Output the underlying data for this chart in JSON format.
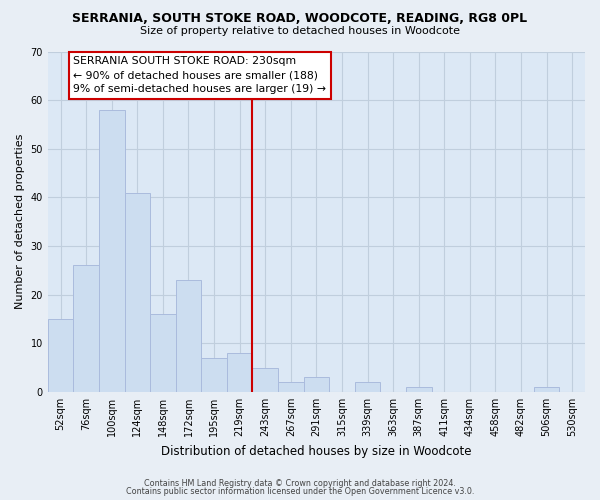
{
  "title_line1": "SERRANIA, SOUTH STOKE ROAD, WOODCOTE, READING, RG8 0PL",
  "title_line2": "Size of property relative to detached houses in Woodcote",
  "xlabel": "Distribution of detached houses by size in Woodcote",
  "ylabel": "Number of detached properties",
  "bar_labels": [
    "52sqm",
    "76sqm",
    "100sqm",
    "124sqm",
    "148sqm",
    "172sqm",
    "195sqm",
    "219sqm",
    "243sqm",
    "267sqm",
    "291sqm",
    "315sqm",
    "339sqm",
    "363sqm",
    "387sqm",
    "411sqm",
    "434sqm",
    "458sqm",
    "482sqm",
    "506sqm",
    "530sqm"
  ],
  "bar_heights": [
    15,
    26,
    58,
    41,
    16,
    23,
    7,
    8,
    5,
    2,
    3,
    0,
    2,
    0,
    1,
    0,
    0,
    0,
    0,
    1,
    0
  ],
  "bar_color": "#ccddf0",
  "bar_edge_color": "#aabbdd",
  "vline_color": "#cc0000",
  "ylim": [
    0,
    70
  ],
  "yticks": [
    0,
    10,
    20,
    30,
    40,
    50,
    60,
    70
  ],
  "annotation_title": "SERRANIA SOUTH STOKE ROAD: 230sqm",
  "annotation_line1": "← 90% of detached houses are smaller (188)",
  "annotation_line2": "9% of semi-detached houses are larger (19) →",
  "annotation_box_color": "#ffffff",
  "annotation_border_color": "#cc0000",
  "footer_line1": "Contains HM Land Registry data © Crown copyright and database right 2024.",
  "footer_line2": "Contains public sector information licensed under the Open Government Licence v3.0.",
  "background_color": "#e8eef5",
  "plot_background_color": "#dce8f5",
  "grid_color": "#c0cedd"
}
